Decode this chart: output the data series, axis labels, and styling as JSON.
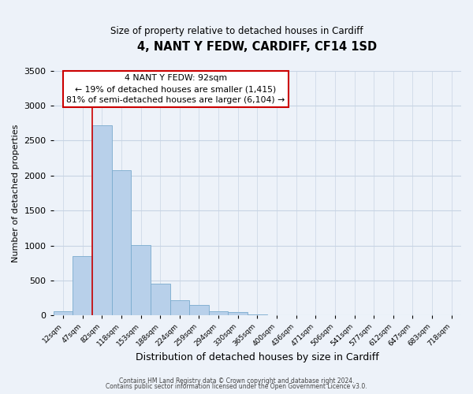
{
  "title": "4, NANT Y FEDW, CARDIFF, CF14 1SD",
  "subtitle": "Size of property relative to detached houses in Cardiff",
  "xlabel": "Distribution of detached houses by size in Cardiff",
  "ylabel": "Number of detached properties",
  "bar_values": [
    55,
    850,
    2720,
    2070,
    1010,
    455,
    215,
    145,
    55,
    45,
    20,
    5,
    0,
    0,
    0,
    0,
    0,
    0,
    0,
    0,
    0
  ],
  "bin_labels": [
    "12sqm",
    "47sqm",
    "82sqm",
    "118sqm",
    "153sqm",
    "188sqm",
    "224sqm",
    "259sqm",
    "294sqm",
    "330sqm",
    "365sqm",
    "400sqm",
    "436sqm",
    "471sqm",
    "506sqm",
    "541sqm",
    "577sqm",
    "612sqm",
    "647sqm",
    "683sqm",
    "718sqm"
  ],
  "bar_color": "#b8d0ea",
  "bar_edge_color": "#7aabce",
  "ylim": [
    0,
    3500
  ],
  "yticks": [
    0,
    500,
    1000,
    1500,
    2000,
    2500,
    3000,
    3500
  ],
  "property_line_color": "#cc0000",
  "annotation_title": "4 NANT Y FEDW: 92sqm",
  "annotation_line1": "← 19% of detached houses are smaller (1,415)",
  "annotation_line2": "81% of semi-detached houses are larger (6,104) →",
  "annotation_box_color": "#ffffff",
  "annotation_box_edge": "#cc0000",
  "footer1": "Contains HM Land Registry data © Crown copyright and database right 2024.",
  "footer2": "Contains public sector information licensed under the Open Government Licence v3.0.",
  "background_color": "#edf2f9",
  "grid_color": "#c8d4e4"
}
